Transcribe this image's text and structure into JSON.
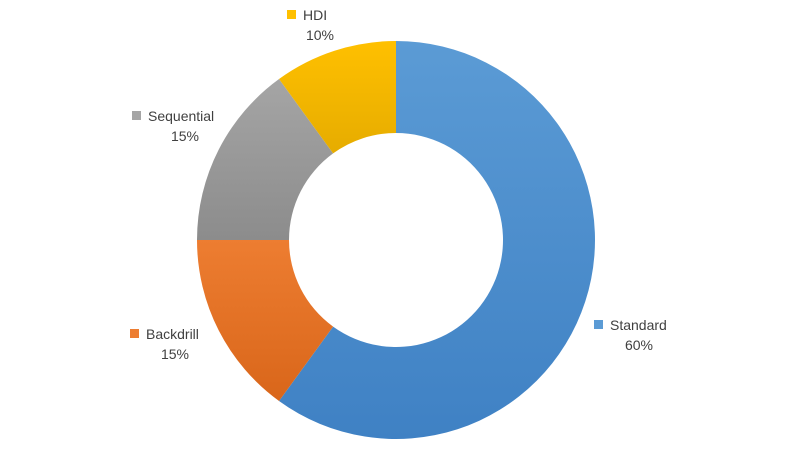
{
  "chart_data": {
    "type": "pie",
    "donut": true,
    "start_angle_deg": 0,
    "direction": "clockwise",
    "slices": [
      {
        "label": "Standard",
        "value": 60,
        "value_label": "60%",
        "color": "#5B9BD5",
        "color_dark": "#3F81C4"
      },
      {
        "label": "Backdrill",
        "value": 15,
        "value_label": "15%",
        "color": "#ED7D31",
        "color_dark": "#D9661A"
      },
      {
        "label": "Sequential",
        "value": 15,
        "value_label": "15%",
        "color": "#A5A5A5",
        "color_dark": "#8C8C8C"
      },
      {
        "label": "HDI",
        "value": 10,
        "value_label": "10%",
        "color": "#FFC000",
        "color_dark": "#E6AC00"
      }
    ]
  }
}
